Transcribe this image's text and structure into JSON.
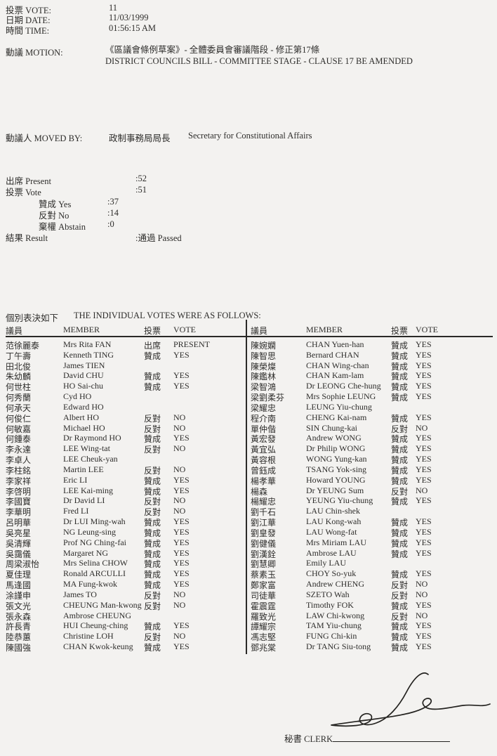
{
  "doc": {
    "info": {
      "vote_label": "投票 VOTE:",
      "vote_value": "11",
      "date_label": "日期 DATE:",
      "date_value": "11/03/1999",
      "time_label": "時間 TIME:",
      "time_value": "01:56:15 AM"
    },
    "motion": {
      "label": "動議 MOTION:",
      "text_cn": "《區議會條例草案》- 全體委員會審議階段 - 修正第17條",
      "text_en": "DISTRICT COUNCILS BILL - COMMITTEE STAGE - CLAUSE 17 BE AMENDED"
    },
    "moved_by": {
      "label": "動議人 MOVED BY:",
      "value_cn": "政制事務局局長",
      "value_en": "Secretary for Constitutional Affairs"
    },
    "summary": {
      "present_label": "出席 Present",
      "present_value": ":52",
      "vote_label": "投票 Vote",
      "vote_value": ":51",
      "yes_label": "贊成 Yes",
      "yes_value": ":37",
      "no_label": "反對 No",
      "no_value": ":14",
      "abstain_label": "棄權 Abstain",
      "abstain_value": ":0",
      "result_label": "結果 Result",
      "result_value": ":通過 Passed"
    },
    "individual_votes": {
      "heading_cn": "個別表決如下",
      "heading_en": "THE INDIVIDUAL VOTES WERE AS FOLLOWS:",
      "headers": {
        "member_cn": "議員",
        "member_en": "MEMBER",
        "vote_cn": "投票",
        "vote_en": "VOTE"
      },
      "left_rows": [
        {
          "name_cn": "范徐麗泰",
          "name_en": "Mrs Rita FAN",
          "vote_cn": "出席",
          "vote_en": "PRESENT"
        },
        {
          "name_cn": "丁午壽",
          "name_en": "Kenneth TING",
          "vote_cn": "贊成",
          "vote_en": "YES"
        },
        {
          "name_cn": "田北俊",
          "name_en": "James TIEN",
          "vote_cn": "",
          "vote_en": ""
        },
        {
          "name_cn": "朱幼麟",
          "name_en": "David CHU",
          "vote_cn": "贊成",
          "vote_en": "YES"
        },
        {
          "name_cn": "何世柱",
          "name_en": "HO Sai-chu",
          "vote_cn": "贊成",
          "vote_en": "YES"
        },
        {
          "name_cn": "何秀蘭",
          "name_en": "Cyd HO",
          "vote_cn": "",
          "vote_en": ""
        },
        {
          "name_cn": "何承天",
          "name_en": "Edward HO",
          "vote_cn": "",
          "vote_en": ""
        },
        {
          "name_cn": "何俊仁",
          "name_en": "Albert HO",
          "vote_cn": "反對",
          "vote_en": "NO"
        },
        {
          "name_cn": "何敏嘉",
          "name_en": "Michael HO",
          "vote_cn": "反對",
          "vote_en": "NO"
        },
        {
          "name_cn": "何鍾泰",
          "name_en": "Dr Raymond HO",
          "vote_cn": "贊成",
          "vote_en": "YES"
        },
        {
          "name_cn": "李永達",
          "name_en": "LEE Wing-tat",
          "vote_cn": "反對",
          "vote_en": "NO"
        },
        {
          "name_cn": "李卓人",
          "name_en": "LEE Cheuk-yan",
          "vote_cn": "",
          "vote_en": ""
        },
        {
          "name_cn": "李柱銘",
          "name_en": "Martin LEE",
          "vote_cn": "反對",
          "vote_en": "NO"
        },
        {
          "name_cn": "李家祥",
          "name_en": "Eric LI",
          "vote_cn": "贊成",
          "vote_en": "YES"
        },
        {
          "name_cn": "李啓明",
          "name_en": "LEE Kai-ming",
          "vote_cn": "贊成",
          "vote_en": "YES"
        },
        {
          "name_cn": "李國寶",
          "name_en": "Dr David LI",
          "vote_cn": "反對",
          "vote_en": "NO"
        },
        {
          "name_cn": "李華明",
          "name_en": "Fred LI",
          "vote_cn": "反對",
          "vote_en": "NO"
        },
        {
          "name_cn": "呂明華",
          "name_en": "Dr LUI Ming-wah",
          "vote_cn": "贊成",
          "vote_en": "YES"
        },
        {
          "name_cn": "吳亮星",
          "name_en": "NG Leung-sing",
          "vote_cn": "贊成",
          "vote_en": "YES"
        },
        {
          "name_cn": "吳清輝",
          "name_en": "Prof NG Ching-fai",
          "vote_cn": "贊成",
          "vote_en": "YES"
        },
        {
          "name_cn": "吳靄儀",
          "name_en": "Margaret NG",
          "vote_cn": "贊成",
          "vote_en": "YES"
        },
        {
          "name_cn": "周梁淑怡",
          "name_en": "Mrs Selina CHOW",
          "vote_cn": "贊成",
          "vote_en": "YES"
        },
        {
          "name_cn": "夏佳理",
          "name_en": "Ronald ARCULLI",
          "vote_cn": "贊成",
          "vote_en": "YES"
        },
        {
          "name_cn": "馬逢國",
          "name_en": "MA Fung-kwok",
          "vote_cn": "贊成",
          "vote_en": "YES"
        },
        {
          "name_cn": "涂謹申",
          "name_en": "James TO",
          "vote_cn": "反對",
          "vote_en": "NO"
        },
        {
          "name_cn": "張文光",
          "name_en": "CHEUNG Man-kwong",
          "vote_cn": "反對",
          "vote_en": "NO"
        },
        {
          "name_cn": "張永森",
          "name_en": "Ambrose CHEUNG",
          "vote_cn": "",
          "vote_en": ""
        },
        {
          "name_cn": "許長青",
          "name_en": "HUI Cheung-ching",
          "vote_cn": "贊成",
          "vote_en": "YES"
        },
        {
          "name_cn": "陸恭蕙",
          "name_en": "Christine LOH",
          "vote_cn": "反對",
          "vote_en": "NO"
        },
        {
          "name_cn": "陳國強",
          "name_en": "CHAN Kwok-keung",
          "vote_cn": "贊成",
          "vote_en": "YES"
        }
      ],
      "right_rows": [
        {
          "name_cn": "陳婉嫻",
          "name_en": "CHAN Yuen-han",
          "vote_cn": "贊成",
          "vote_en": "YES"
        },
        {
          "name_cn": "陳智思",
          "name_en": "Bernard CHAN",
          "vote_cn": "贊成",
          "vote_en": "YES"
        },
        {
          "name_cn": "陳榮燦",
          "name_en": "CHAN Wing-chan",
          "vote_cn": "贊成",
          "vote_en": "YES"
        },
        {
          "name_cn": "陳鑑林",
          "name_en": "CHAN Kam-lam",
          "vote_cn": "贊成",
          "vote_en": "YES"
        },
        {
          "name_cn": "梁智鴻",
          "name_en": "Dr LEONG Che-hung",
          "vote_cn": "贊成",
          "vote_en": "YES"
        },
        {
          "name_cn": "梁劉柔芬",
          "name_en": "Mrs Sophie LEUNG",
          "vote_cn": "贊成",
          "vote_en": "YES"
        },
        {
          "name_cn": "梁耀忠",
          "name_en": "LEUNG Yiu-chung",
          "vote_cn": "",
          "vote_en": ""
        },
        {
          "name_cn": "程介南",
          "name_en": "CHENG Kai-nam",
          "vote_cn": "贊成",
          "vote_en": "YES"
        },
        {
          "name_cn": "單仲偕",
          "name_en": "SIN Chung-kai",
          "vote_cn": "反對",
          "vote_en": "NO"
        },
        {
          "name_cn": "黃宏發",
          "name_en": "Andrew WONG",
          "vote_cn": "贊成",
          "vote_en": "YES"
        },
        {
          "name_cn": "黃宜弘",
          "name_en": "Dr Philip WONG",
          "vote_cn": "贊成",
          "vote_en": "YES"
        },
        {
          "name_cn": "黃容根",
          "name_en": "WONG Yung-kan",
          "vote_cn": "贊成",
          "vote_en": "YES"
        },
        {
          "name_cn": "曾鈺成",
          "name_en": "TSANG Yok-sing",
          "vote_cn": "贊成",
          "vote_en": "YES"
        },
        {
          "name_cn": "楊孝華",
          "name_en": "Howard YOUNG",
          "vote_cn": "贊成",
          "vote_en": "YES"
        },
        {
          "name_cn": "楊森",
          "name_en": "Dr YEUNG Sum",
          "vote_cn": "反對",
          "vote_en": "NO"
        },
        {
          "name_cn": "楊耀忠",
          "name_en": "YEUNG Yiu-chung",
          "vote_cn": "贊成",
          "vote_en": "YES"
        },
        {
          "name_cn": "劉千石",
          "name_en": "LAU Chin-shek",
          "vote_cn": "",
          "vote_en": ""
        },
        {
          "name_cn": "劉江華",
          "name_en": "LAU Kong-wah",
          "vote_cn": "贊成",
          "vote_en": "YES"
        },
        {
          "name_cn": "劉皇發",
          "name_en": "LAU Wong-fat",
          "vote_cn": "贊成",
          "vote_en": "YES"
        },
        {
          "name_cn": "劉健儀",
          "name_en": "Mrs Miriam LAU",
          "vote_cn": "贊成",
          "vote_en": "YES"
        },
        {
          "name_cn": "劉漢銓",
          "name_en": "Ambrose LAU",
          "vote_cn": "贊成",
          "vote_en": "YES"
        },
        {
          "name_cn": "劉慧卿",
          "name_en": "Emily LAU",
          "vote_cn": "",
          "vote_en": ""
        },
        {
          "name_cn": "蔡素玉",
          "name_en": "CHOY So-yuk",
          "vote_cn": "贊成",
          "vote_en": "YES"
        },
        {
          "name_cn": "鄭家富",
          "name_en": "Andrew CHENG",
          "vote_cn": "反對",
          "vote_en": "NO"
        },
        {
          "name_cn": "司徒華",
          "name_en": "SZETO Wah",
          "vote_cn": "反對",
          "vote_en": "NO"
        },
        {
          "name_cn": "霍震霆",
          "name_en": "Timothy FOK",
          "vote_cn": "贊成",
          "vote_en": "YES"
        },
        {
          "name_cn": "羅致光",
          "name_en": "LAW Chi-kwong",
          "vote_cn": "反對",
          "vote_en": "NO"
        },
        {
          "name_cn": "譚耀宗",
          "name_en": "TAM Yiu-chung",
          "vote_cn": "贊成",
          "vote_en": "YES"
        },
        {
          "name_cn": "馮志堅",
          "name_en": "FUNG Chi-kin",
          "vote_cn": "贊成",
          "vote_en": "YES"
        },
        {
          "name_cn": "鄧兆棠",
          "name_en": "Dr TANG Siu-tong",
          "vote_cn": "贊成",
          "vote_en": "YES"
        }
      ]
    },
    "footer": {
      "clerk_label": "秘書 CLERK"
    }
  }
}
